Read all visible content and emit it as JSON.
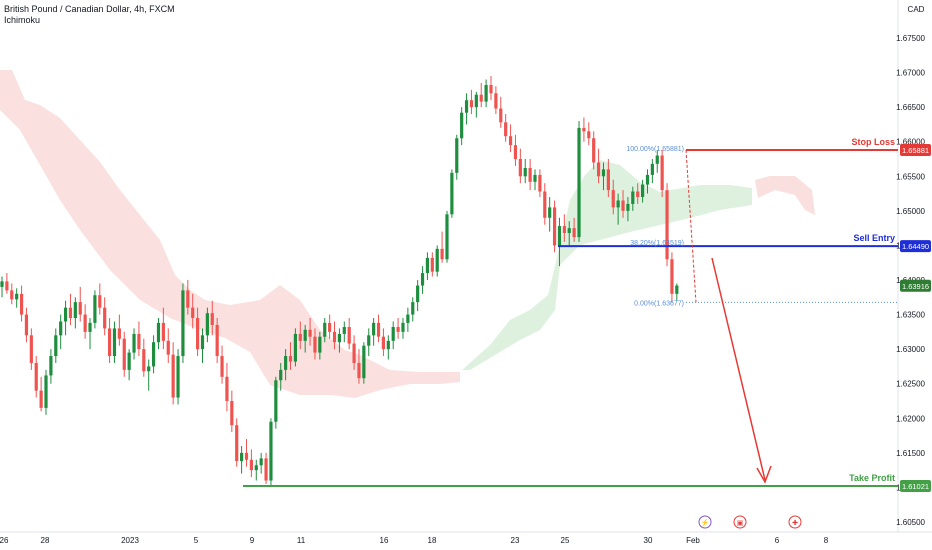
{
  "header": {
    "title": "British Pound / Canadian Dollar, 4h, FXCM",
    "indicator": "Ichimoku"
  },
  "currency": "CAD",
  "colors": {
    "bull": "#26a69a",
    "bull_body": "#1e8e3e",
    "bear": "#ef5350",
    "cloud_bear": "#f8d7d5",
    "cloud_bull": "#d8eed9",
    "stop": "#e53935",
    "entry": "#1e2fd8",
    "tp": "#43a047",
    "fib": "#5b8fd8",
    "current": "#2e7d32"
  },
  "chart_data": {
    "type": "candlestick",
    "symbol": "GBPCAD",
    "timeframe": "4h",
    "y_axis": {
      "ticks": [
        "1.67500",
        "1.67000",
        "1.66500",
        "1.66000",
        "1.65500",
        "1.65000",
        "1.64500",
        "1.64000",
        "1.63500",
        "1.63000",
        "1.62500",
        "1.62000",
        "1.61500",
        "1.61000",
        "1.60500"
      ]
    },
    "x_axis": {
      "ticks": [
        "26",
        "28",
        "2023",
        "5",
        "9",
        "11",
        "16",
        "18",
        "23",
        "25",
        "30",
        "Feb",
        "6",
        "8"
      ]
    },
    "levels": {
      "stop_loss": {
        "label": "Stop Loss",
        "price": "1.65881"
      },
      "sell_entry": {
        "label": "Sell Entry",
        "price": "1.64490"
      },
      "take_profit": {
        "label": "Take Profit",
        "price": "1.61021"
      },
      "current": {
        "price": "1.63916"
      }
    },
    "fib": {
      "top": "100.00%(1.65881)",
      "mid": "38.20%(1.64519)",
      "bottom": "0.00%(1.63677)"
    },
    "candles": [
      [
        1.639,
        1.6405,
        1.6375,
        1.6398
      ],
      [
        1.6398,
        1.641,
        1.638,
        1.6385
      ],
      [
        1.6385,
        1.6395,
        1.6365,
        1.6372
      ],
      [
        1.6372,
        1.6388,
        1.636,
        1.638
      ],
      [
        1.638,
        1.6392,
        1.634,
        1.635
      ],
      [
        1.635,
        1.636,
        1.631,
        1.632
      ],
      [
        1.632,
        1.633,
        1.627,
        1.628
      ],
      [
        1.628,
        1.629,
        1.623,
        1.624
      ],
      [
        1.624,
        1.626,
        1.621,
        1.6215
      ],
      [
        1.6215,
        1.627,
        1.6205,
        1.6262
      ],
      [
        1.6262,
        1.63,
        1.625,
        1.629
      ],
      [
        1.629,
        1.633,
        1.628,
        1.632
      ],
      [
        1.632,
        1.635,
        1.63,
        1.634
      ],
      [
        1.634,
        1.637,
        1.632,
        1.636
      ],
      [
        1.636,
        1.638,
        1.6335,
        1.6345
      ],
      [
        1.6345,
        1.6375,
        1.633,
        1.6368
      ],
      [
        1.6368,
        1.639,
        1.634,
        1.635
      ],
      [
        1.635,
        1.6365,
        1.6315,
        1.6325
      ],
      [
        1.6325,
        1.6345,
        1.63,
        1.6338
      ],
      [
        1.6338,
        1.6385,
        1.633,
        1.6378
      ],
      [
        1.6378,
        1.6395,
        1.635,
        1.636
      ],
      [
        1.636,
        1.6375,
        1.632,
        1.633
      ],
      [
        1.633,
        1.6345,
        1.628,
        1.629
      ],
      [
        1.629,
        1.634,
        1.628,
        1.633
      ],
      [
        1.633,
        1.635,
        1.6305,
        1.6315
      ],
      [
        1.6315,
        1.6325,
        1.626,
        1.627
      ],
      [
        1.627,
        1.63,
        1.6255,
        1.6295
      ],
      [
        1.6295,
        1.633,
        1.6285,
        1.6322
      ],
      [
        1.6322,
        1.634,
        1.629,
        1.63
      ],
      [
        1.63,
        1.6315,
        1.626,
        1.6268
      ],
      [
        1.6268,
        1.6285,
        1.624,
        1.6275
      ],
      [
        1.6275,
        1.632,
        1.6265,
        1.631
      ],
      [
        1.631,
        1.6345,
        1.63,
        1.6338
      ],
      [
        1.6338,
        1.636,
        1.63,
        1.6312
      ],
      [
        1.6312,
        1.633,
        1.628,
        1.6292
      ],
      [
        1.6292,
        1.631,
        1.622,
        1.623
      ],
      [
        1.623,
        1.63,
        1.622,
        1.629
      ],
      [
        1.629,
        1.6395,
        1.628,
        1.6385
      ],
      [
        1.6385,
        1.64,
        1.635,
        1.636
      ],
      [
        1.636,
        1.638,
        1.633,
        1.6345
      ],
      [
        1.6345,
        1.636,
        1.629,
        1.63
      ],
      [
        1.63,
        1.633,
        1.628,
        1.632
      ],
      [
        1.632,
        1.636,
        1.631,
        1.6352
      ],
      [
        1.6352,
        1.637,
        1.632,
        1.6335
      ],
      [
        1.6335,
        1.6345,
        1.628,
        1.629
      ],
      [
        1.629,
        1.6305,
        1.625,
        1.626
      ],
      [
        1.626,
        1.628,
        1.621,
        1.6225
      ],
      [
        1.6225,
        1.624,
        1.618,
        1.619
      ],
      [
        1.619,
        1.62,
        1.613,
        1.6138
      ],
      [
        1.6138,
        1.616,
        1.612,
        1.615
      ],
      [
        1.615,
        1.617,
        1.613,
        1.614
      ],
      [
        1.614,
        1.6155,
        1.6115,
        1.6125
      ],
      [
        1.6125,
        1.614,
        1.611,
        1.6132
      ],
      [
        1.6132,
        1.615,
        1.612,
        1.6142
      ],
      [
        1.6142,
        1.615,
        1.6105,
        1.611
      ],
      [
        1.611,
        1.62,
        1.6102,
        1.6195
      ],
      [
        1.6195,
        1.626,
        1.6185,
        1.6255
      ],
      [
        1.6255,
        1.628,
        1.624,
        1.627
      ],
      [
        1.627,
        1.63,
        1.6255,
        1.629
      ],
      [
        1.629,
        1.631,
        1.627,
        1.6282
      ],
      [
        1.6282,
        1.633,
        1.6275,
        1.6322
      ],
      [
        1.6322,
        1.634,
        1.63,
        1.6312
      ],
      [
        1.6312,
        1.6335,
        1.6295,
        1.6328
      ],
      [
        1.6328,
        1.6345,
        1.6305,
        1.6318
      ],
      [
        1.6318,
        1.633,
        1.6285,
        1.6295
      ],
      [
        1.6295,
        1.6325,
        1.6285,
        1.6318
      ],
      [
        1.6318,
        1.6345,
        1.631,
        1.6338
      ],
      [
        1.6338,
        1.635,
        1.6315,
        1.6325
      ],
      [
        1.6325,
        1.634,
        1.63,
        1.631
      ],
      [
        1.631,
        1.633,
        1.6295,
        1.6322
      ],
      [
        1.6322,
        1.634,
        1.631,
        1.6332
      ],
      [
        1.6332,
        1.6345,
        1.63,
        1.6308
      ],
      [
        1.6308,
        1.632,
        1.627,
        1.628
      ],
      [
        1.628,
        1.63,
        1.625,
        1.6258
      ],
      [
        1.6258,
        1.631,
        1.625,
        1.6305
      ],
      [
        1.6305,
        1.633,
        1.629,
        1.632
      ],
      [
        1.632,
        1.6345,
        1.6305,
        1.6338
      ],
      [
        1.6338,
        1.635,
        1.631,
        1.6318
      ],
      [
        1.6318,
        1.633,
        1.629,
        1.63
      ],
      [
        1.63,
        1.632,
        1.6285,
        1.6312
      ],
      [
        1.6312,
        1.634,
        1.63,
        1.6332
      ],
      [
        1.6332,
        1.6345,
        1.6315,
        1.6325
      ],
      [
        1.6325,
        1.6345,
        1.6315,
        1.6338
      ],
      [
        1.6338,
        1.636,
        1.6325,
        1.635
      ],
      [
        1.635,
        1.6375,
        1.634,
        1.6368
      ],
      [
        1.6368,
        1.64,
        1.6355,
        1.6392
      ],
      [
        1.6392,
        1.642,
        1.638,
        1.641
      ],
      [
        1.641,
        1.644,
        1.64,
        1.6432
      ],
      [
        1.6432,
        1.644,
        1.6405,
        1.6412
      ],
      [
        1.6412,
        1.645,
        1.6405,
        1.6445
      ],
      [
        1.6445,
        1.647,
        1.6425,
        1.643
      ],
      [
        1.643,
        1.65,
        1.6425,
        1.6495
      ],
      [
        1.6495,
        1.656,
        1.649,
        1.6555
      ],
      [
        1.6555,
        1.661,
        1.6545,
        1.6605
      ],
      [
        1.6605,
        1.665,
        1.6595,
        1.6642
      ],
      [
        1.6642,
        1.667,
        1.6625,
        1.666
      ],
      [
        1.666,
        1.6675,
        1.664,
        1.665
      ],
      [
        1.665,
        1.6672,
        1.6635,
        1.6668
      ],
      [
        1.6668,
        1.6685,
        1.665,
        1.6658
      ],
      [
        1.6658,
        1.669,
        1.665,
        1.6682
      ],
      [
        1.6682,
        1.6695,
        1.666,
        1.667
      ],
      [
        1.667,
        1.668,
        1.664,
        1.6648
      ],
      [
        1.6648,
        1.6665,
        1.662,
        1.6628
      ],
      [
        1.6628,
        1.664,
        1.66,
        1.6608
      ],
      [
        1.6608,
        1.6625,
        1.6585,
        1.6595
      ],
      [
        1.6595,
        1.661,
        1.6565,
        1.6575
      ],
      [
        1.6575,
        1.659,
        1.654,
        1.655
      ],
      [
        1.655,
        1.6575,
        1.654,
        1.6562
      ],
      [
        1.6562,
        1.6575,
        1.653,
        1.6542
      ],
      [
        1.6542,
        1.656,
        1.653,
        1.6552
      ],
      [
        1.6552,
        1.656,
        1.652,
        1.6528
      ],
      [
        1.6528,
        1.654,
        1.648,
        1.649
      ],
      [
        1.649,
        1.652,
        1.647,
        1.6505
      ],
      [
        1.6505,
        1.6515,
        1.644,
        1.645
      ],
      [
        1.645,
        1.649,
        1.642,
        1.6478
      ],
      [
        1.6478,
        1.6495,
        1.6455,
        1.6468
      ],
      [
        1.6468,
        1.6485,
        1.645,
        1.6475
      ],
      [
        1.6475,
        1.649,
        1.6455,
        1.6462
      ],
      [
        1.6462,
        1.663,
        1.6455,
        1.662
      ],
      [
        1.662,
        1.6635,
        1.66,
        1.6615
      ],
      [
        1.6615,
        1.6628,
        1.6595,
        1.6605
      ],
      [
        1.6605,
        1.6615,
        1.656,
        1.657
      ],
      [
        1.657,
        1.659,
        1.654,
        1.655
      ],
      [
        1.655,
        1.657,
        1.653,
        1.656
      ],
      [
        1.656,
        1.6575,
        1.652,
        1.653
      ],
      [
        1.653,
        1.6545,
        1.6495,
        1.6505
      ],
      [
        1.6505,
        1.6525,
        1.648,
        1.6515
      ],
      [
        1.6515,
        1.653,
        1.649,
        1.65
      ],
      [
        1.65,
        1.652,
        1.6485,
        1.651
      ],
      [
        1.651,
        1.6535,
        1.65,
        1.6528
      ],
      [
        1.6528,
        1.654,
        1.651,
        1.652
      ],
      [
        1.652,
        1.6545,
        1.6512,
        1.6538
      ],
      [
        1.6538,
        1.656,
        1.6525,
        1.6552
      ],
      [
        1.6552,
        1.6575,
        1.654,
        1.6568
      ],
      [
        1.6568,
        1.6588,
        1.6555,
        1.658
      ],
      [
        1.658,
        1.6588,
        1.652,
        1.653
      ],
      [
        1.653,
        1.654,
        1.642,
        1.643
      ],
      [
        1.643,
        1.644,
        1.6368,
        1.638
      ],
      [
        1.638,
        1.6395,
        1.637,
        1.6392
      ]
    ]
  },
  "events": [
    {
      "symbol": "⚡",
      "color": "#7e57c2"
    },
    {
      "symbol": "▣",
      "color": "#e53935"
    },
    {
      "symbol": "✚",
      "color": "#e53935"
    }
  ]
}
